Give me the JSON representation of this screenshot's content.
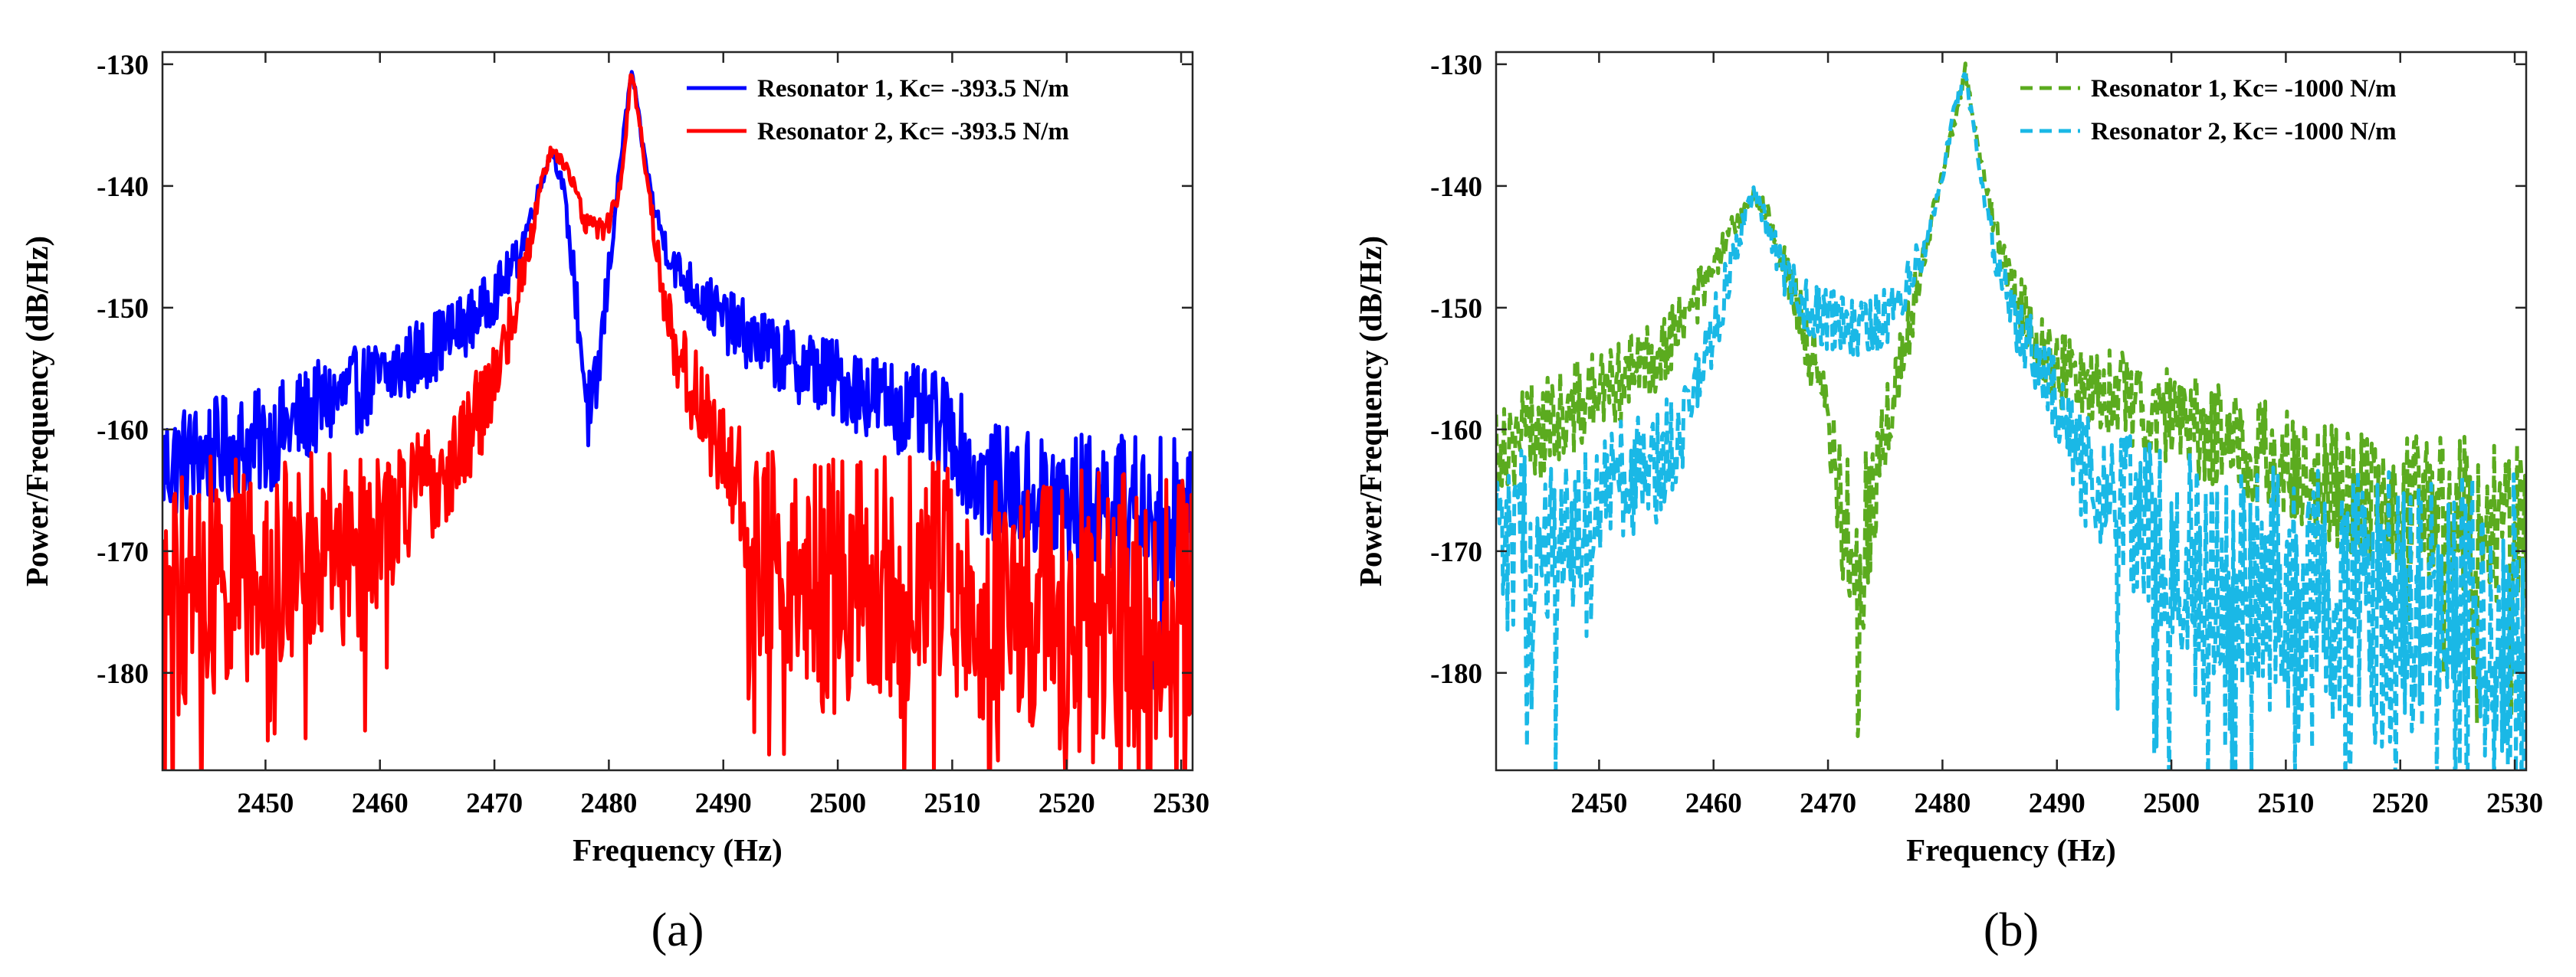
{
  "chart_data": [
    {
      "type": "line",
      "panel_label": "(a)",
      "xlabel": "Frequency (Hz)",
      "ylabel": "Power/Frequency (dB/Hz)",
      "xlim": [
        2441,
        2531
      ],
      "ylim": [
        -188,
        -129
      ],
      "xticks": [
        2450,
        2460,
        2470,
        2480,
        2490,
        2500,
        2510,
        2520,
        2530
      ],
      "yticks": [
        -130,
        -140,
        -150,
        -160,
        -170,
        -180
      ],
      "legend_position": "top-right",
      "series": [
        {
          "name": "Resonator 1, Kc= -393.5 N/m",
          "color": "#0000ff",
          "dashed": false,
          "x": [
            2441,
            2445,
            2450,
            2455,
            2460,
            2465,
            2468,
            2470,
            2472,
            2473,
            2474,
            2475,
            2476,
            2477,
            2478,
            2478.5,
            2479,
            2480,
            2481,
            2482,
            2483,
            2484,
            2485,
            2486,
            2488,
            2490,
            2495,
            2500,
            2505,
            2510,
            2512,
            2515,
            2520,
            2525,
            2531
          ],
          "y": [
            -163,
            -162,
            -161,
            -158,
            -156,
            -153,
            -151,
            -149,
            -146,
            -143,
            -140,
            -137,
            -140,
            -148,
            -157,
            -160,
            -156,
            -147,
            -138,
            -130.5,
            -137,
            -142,
            -145,
            -147,
            -149,
            -151,
            -154,
            -156,
            -158,
            -160,
            -164,
            -165,
            -166,
            -166,
            -167
          ]
        },
        {
          "name": "Resonator 2, Kc= -393.5 N/m",
          "color": "#ff0000",
          "dashed": false,
          "x": [
            2441,
            2445,
            2450,
            2455,
            2460,
            2465,
            2468,
            2470,
            2472,
            2473,
            2474,
            2475,
            2476,
            2477,
            2478,
            2479,
            2480,
            2481,
            2482,
            2483,
            2484,
            2485,
            2486,
            2488,
            2490,
            2492,
            2493,
            2495,
            2500,
            2505,
            2510,
            2515,
            2520,
            2525,
            2531
          ],
          "y": [
            -174,
            -172,
            -171,
            -169,
            -168,
            -164,
            -160,
            -156,
            -149,
            -145,
            -140,
            -137,
            -138,
            -140,
            -143,
            -143.5,
            -143,
            -140,
            -130.5,
            -137,
            -144,
            -150,
            -154,
            -158,
            -162,
            -166,
            -170,
            -171,
            -173,
            -172,
            -173,
            -174,
            -175,
            -176,
            -176
          ]
        }
      ]
    },
    {
      "type": "line",
      "panel_label": "(b)",
      "xlabel": "Frequency (Hz)",
      "ylabel": "Power/Frequency (dB/Hz)",
      "xlim": [
        2441,
        2531
      ],
      "ylim": [
        -188,
        -129
      ],
      "xticks": [
        2450,
        2460,
        2470,
        2480,
        2490,
        2500,
        2510,
        2520,
        2530
      ],
      "yticks": [
        -130,
        -140,
        -150,
        -160,
        -170,
        -180
      ],
      "legend_position": "top-right",
      "series": [
        {
          "name": "Resonator 1, Kc= -1000 N/m",
          "color": "#5bab1f",
          "dashed": true,
          "x": [
            2441,
            2445,
            2450,
            2455,
            2458,
            2460,
            2462,
            2463.5,
            2465,
            2466,
            2467,
            2468,
            2469,
            2470,
            2471,
            2472,
            2472.5,
            2473,
            2474,
            2475,
            2476,
            2477,
            2478,
            2479,
            2480,
            2481,
            2482,
            2483,
            2484,
            2485,
            2486,
            2488,
            2490,
            2495,
            2500,
            2505,
            2510,
            2515,
            2520,
            2525,
            2531
          ],
          "y": [
            -161,
            -160,
            -157,
            -154,
            -150,
            -147,
            -143,
            -140.5,
            -143,
            -146,
            -149,
            -152,
            -156,
            -160,
            -165,
            -170,
            -176,
            -171,
            -165,
            -160,
            -156,
            -152,
            -147,
            -143,
            -139,
            -135,
            -130.5,
            -136,
            -141,
            -145,
            -148,
            -152,
            -155,
            -157,
            -159,
            -161,
            -163,
            -165,
            -166,
            -167,
            -168
          ]
        },
        {
          "name": "Resonator 2, Kc= -1000 N/m",
          "color": "#1ab8e6",
          "dashed": true,
          "x": [
            2441,
            2445,
            2448,
            2450,
            2455,
            2458,
            2460,
            2462,
            2463.5,
            2465,
            2466,
            2468,
            2470,
            2472,
            2474,
            2476,
            2478,
            2479,
            2480,
            2481,
            2482,
            2483,
            2484,
            2485,
            2486,
            2488,
            2490,
            2492,
            2495,
            2498,
            2500,
            2505,
            2510,
            2515,
            2520,
            2525,
            2531
          ],
          "y": [
            -171,
            -170,
            -168,
            -165,
            -163,
            -158,
            -152,
            -145,
            -140.5,
            -144,
            -147,
            -150,
            -151,
            -152,
            -151.5,
            -150,
            -146,
            -143,
            -139,
            -134,
            -130.5,
            -137,
            -143,
            -147,
            -150,
            -154,
            -158,
            -163,
            -166,
            -168,
            -170,
            -172,
            -173,
            -174,
            -175,
            -176,
            -177
          ]
        }
      ]
    }
  ]
}
